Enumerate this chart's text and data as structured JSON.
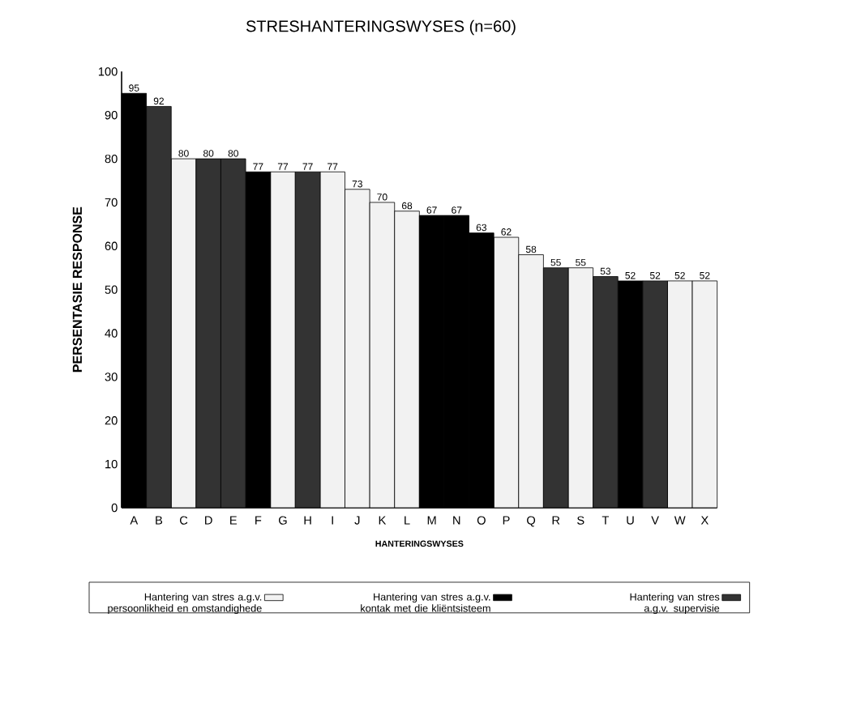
{
  "chart_data": {
    "type": "bar",
    "title": "STRESHANTERINGSWYSES    (n=60)",
    "xlabel": "HANTERINGSWYSES",
    "ylabel": "PERSENTASIE RESPONSE",
    "categories": [
      "A",
      "B",
      "C",
      "D",
      "E",
      "F",
      "G",
      "H",
      "I",
      "J",
      "K",
      "L",
      "M",
      "N",
      "O",
      "P",
      "Q",
      "R",
      "S",
      "T",
      "U",
      "V",
      "W",
      "X"
    ],
    "series": [
      {
        "name": "Hantering van stres a.g.v. persoonlikheid en omstandighede",
        "color": "#f2f2f2",
        "values": [
          null,
          null,
          80,
          null,
          null,
          null,
          77,
          null,
          77,
          73,
          70,
          68,
          null,
          null,
          null,
          62,
          58,
          null,
          55,
          null,
          null,
          null,
          52,
          52
        ]
      },
      {
        "name": "Hantering van stres a.g.v. kontak met die kliëntsisteem",
        "color": "#000000",
        "values": [
          95,
          null,
          null,
          null,
          null,
          77,
          null,
          null,
          null,
          null,
          null,
          null,
          67,
          67,
          63,
          null,
          null,
          null,
          null,
          null,
          52,
          null,
          null,
          null
        ]
      },
      {
        "name": "Hantering van stres a.g.v. supervisie",
        "color": "#333333",
        "values": [
          null,
          92,
          null,
          80,
          80,
          null,
          null,
          77,
          null,
          null,
          null,
          null,
          null,
          null,
          null,
          null,
          null,
          55,
          null,
          53,
          null,
          52,
          null,
          null
        ]
      }
    ],
    "ylim": [
      0,
      100
    ],
    "yticks": [
      0,
      10,
      20,
      30,
      40,
      50,
      60,
      70,
      80,
      90,
      100
    ],
    "data_labels": true,
    "legend": "bottom"
  }
}
